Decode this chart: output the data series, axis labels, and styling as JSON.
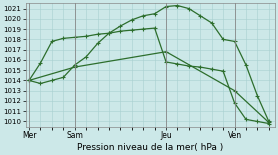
{
  "xlabel": "Pression niveau de la mer( hPa )",
  "ylim": [
    1009.5,
    1021.5
  ],
  "yticks": [
    1010,
    1011,
    1012,
    1013,
    1014,
    1015,
    1016,
    1017,
    1018,
    1019,
    1020,
    1021
  ],
  "bg_color": "#cce8e8",
  "grid_color": "#a8d0d0",
  "line_color": "#2d6e2d",
  "xtick_labels": [
    "Mer",
    "Sam",
    "Jeu",
    "Ven"
  ],
  "xtick_positions": [
    0,
    4,
    12,
    18
  ],
  "xlim": [
    -0.3,
    21.5
  ],
  "vline_color": "#888888",
  "line1_x": [
    0,
    1,
    2,
    3,
    4,
    5,
    6,
    7,
    8,
    9,
    10,
    11,
    12,
    13,
    14,
    15,
    16,
    17,
    18,
    19,
    20,
    21
  ],
  "line1_y": [
    1014.0,
    1013.7,
    1014.0,
    1014.3,
    1015.5,
    1016.3,
    1017.6,
    1018.6,
    1019.3,
    1019.9,
    1020.3,
    1020.5,
    1021.2,
    1021.3,
    1021.0,
    1020.3,
    1019.6,
    1018.0,
    1017.8,
    1015.5,
    1012.5,
    1010.0
  ],
  "line2_x": [
    0,
    1,
    2,
    3,
    4,
    5,
    6,
    7,
    8,
    9,
    10,
    11,
    12,
    13,
    14,
    15,
    16,
    17,
    18,
    19,
    20,
    21
  ],
  "line2_y": [
    1014.0,
    1015.7,
    1017.8,
    1018.1,
    1018.2,
    1018.3,
    1018.5,
    1018.6,
    1018.8,
    1018.9,
    1019.0,
    1019.1,
    1015.8,
    1015.6,
    1015.4,
    1015.3,
    1015.1,
    1014.9,
    1011.8,
    1010.2,
    1010.0,
    1009.8
  ],
  "line3_x": [
    0,
    4,
    12,
    18,
    21
  ],
  "line3_y": [
    1014.0,
    1015.3,
    1016.8,
    1013.0,
    1009.9
  ]
}
